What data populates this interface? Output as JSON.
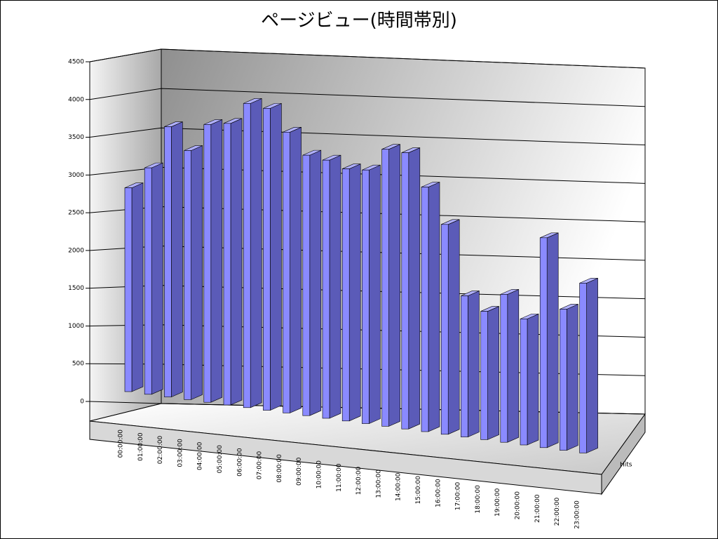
{
  "chart_data": {
    "type": "bar3d",
    "title": "ページビュー(時間帯別)",
    "categories": [
      "00:00:00",
      "01:00:00",
      "02:00:00",
      "03:00:00",
      "04:00:00",
      "05:00:00",
      "06:00:00",
      "07:00:00",
      "08:00:00",
      "09:00:00",
      "10:00:00",
      "11:00:00",
      "12:00:00",
      "13:00:00",
      "14:00:00",
      "15:00:00",
      "16:00:00",
      "17:00:00",
      "18:00:00",
      "19:00:00",
      "20:00:00",
      "21:00:00",
      "22:00:00",
      "23:00:00"
    ],
    "series": [
      {
        "name": "Hits",
        "color": "#8a8aff",
        "values": [
          2700,
          3000,
          3580,
          3300,
          3680,
          3730,
          4030,
          4000,
          3720,
          3450,
          3420,
          3340,
          3360,
          3670,
          3660,
          3240,
          2780,
          1870,
          1700,
          1960,
          1670,
          2780,
          1870,
          2250
        ]
      }
    ],
    "ylim": [
      0,
      4500
    ],
    "yticks": [
      0,
      500,
      1000,
      1500,
      2000,
      2500,
      3000,
      3500,
      4000,
      4500
    ],
    "grid": true
  }
}
